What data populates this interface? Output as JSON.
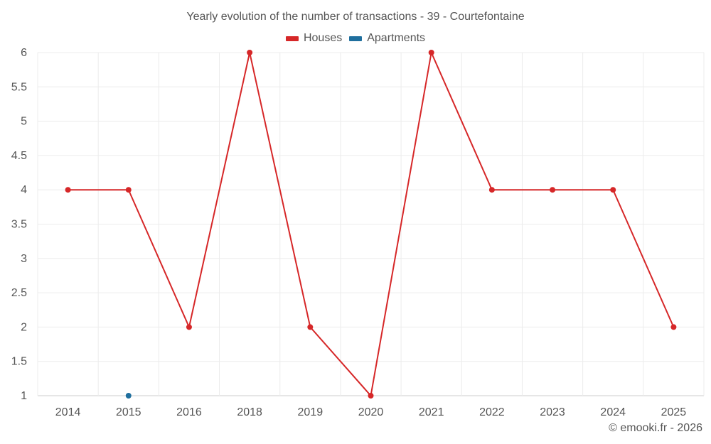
{
  "chart_data": {
    "type": "line",
    "title": "Yearly evolution of the number of transactions - 39 - Courtefontaine",
    "xlabel": "",
    "ylabel": "",
    "categories": [
      "2014",
      "2015",
      "2016",
      "2018",
      "2019",
      "2020",
      "2021",
      "2022",
      "2023",
      "2024",
      "2025"
    ],
    "ylim": [
      1,
      6
    ],
    "yticks": [
      "1",
      "1.5",
      "2",
      "2.5",
      "3",
      "3.5",
      "4",
      "4.5",
      "5",
      "5.5",
      "6"
    ],
    "grid": true,
    "legend_position": "top",
    "series": [
      {
        "name": "Houses",
        "color": "#d62728",
        "values": [
          4,
          4,
          2,
          6,
          2,
          1,
          6,
          4,
          4,
          4,
          2
        ]
      },
      {
        "name": "Apartments",
        "color": "#1f6f9e",
        "values": [
          null,
          1,
          null,
          null,
          null,
          null,
          null,
          null,
          null,
          null,
          null
        ]
      }
    ]
  },
  "credit": "© emooki.fr - 2026"
}
